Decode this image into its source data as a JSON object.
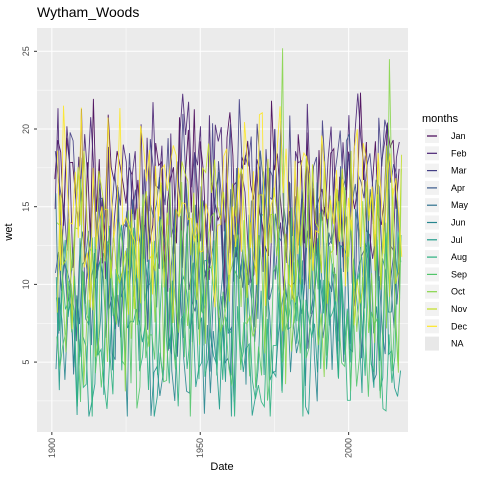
{
  "chart_data": {
    "type": "line",
    "title": "Wytham_Woods",
    "xlabel": "Date",
    "ylabel": "wet",
    "xlim": [
      1895,
      2020
    ],
    "ylim": [
      0.5,
      26.5
    ],
    "x_ticks": [
      1900,
      1950,
      2000
    ],
    "x_tick_labels": [
      "1900",
      "1950",
      "2000"
    ],
    "y_ticks": [
      5,
      10,
      15,
      20,
      25
    ],
    "y_tick_labels": [
      "5",
      "10",
      "15",
      "20",
      "25"
    ],
    "grid": true,
    "panel_background": "#ebebeb",
    "legend": {
      "title": "months",
      "position": "right",
      "entries": [
        "Jan",
        "Feb",
        "Mar",
        "Apr",
        "May",
        "Jun",
        "Jul",
        "Aug",
        "Sep",
        "Oct",
        "Nov",
        "Dec",
        "NA"
      ],
      "colors": [
        "#440154",
        "#482173",
        "#433e85",
        "#38598c",
        "#2d708e",
        "#25858e",
        "#1e9b8a",
        "#2ab07f",
        "#51c56a",
        "#86d549",
        "#c2df23",
        "#fde725",
        "#e8e8e8"
      ]
    },
    "year_range": [
      1901,
      2017
    ],
    "series_summary": {
      "approx_min": 1.5,
      "approx_max": 25.2,
      "typical_range": [
        5,
        22
      ],
      "note_points": [
        {
          "x": 1925,
          "y": 1.5
        },
        {
          "x": 1977,
          "y": 25.2
        },
        {
          "x": 2011,
          "y": 2
        },
        {
          "x": 2013,
          "y": 24.5
        }
      ]
    }
  }
}
